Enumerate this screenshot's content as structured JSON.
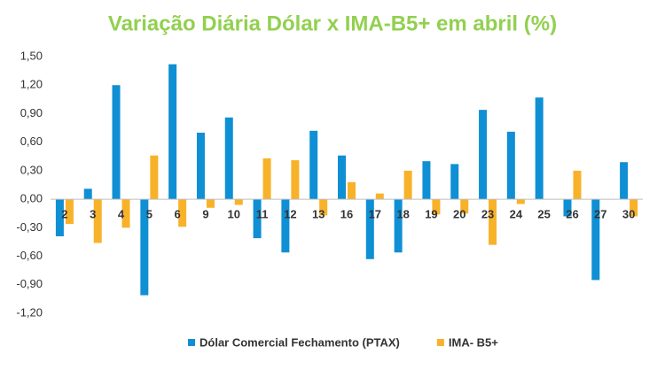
{
  "chart_data": {
    "type": "bar",
    "title": "Variação Diária Dólar x IMA-B5+ em abril (%)",
    "categories": [
      "2",
      "3",
      "4",
      "5",
      "6",
      "9",
      "10",
      "11",
      "12",
      "13",
      "16",
      "17",
      "18",
      "19",
      "20",
      "23",
      "24",
      "25",
      "26",
      "27",
      "30"
    ],
    "series": [
      {
        "name": "Dólar Comercial Fechamento (PTAX)",
        "color": "#0f8fd4",
        "values": [
          -0.39,
          0.11,
          1.2,
          -1.01,
          1.42,
          0.7,
          0.86,
          -0.41,
          -0.56,
          0.72,
          0.46,
          -0.63,
          -0.56,
          0.4,
          0.37,
          0.94,
          0.71,
          1.07,
          -0.18,
          -0.85,
          0.39
        ]
      },
      {
        "name": "IMA- B5+",
        "color": "#f8b229",
        "values": [
          -0.26,
          -0.46,
          -0.3,
          0.46,
          -0.29,
          -0.09,
          -0.06,
          0.43,
          0.41,
          -0.17,
          0.18,
          0.06,
          0.3,
          -0.16,
          -0.15,
          -0.48,
          -0.05,
          null,
          0.3,
          null,
          -0.18
        ]
      }
    ],
    "ylim": [
      -1.2,
      1.5
    ],
    "yticks": [
      {
        "value": -1.2,
        "label": "-1,20"
      },
      {
        "value": -0.9,
        "label": "-0,90"
      },
      {
        "value": -0.6,
        "label": "-0,60"
      },
      {
        "value": -0.3,
        "label": "-0,30"
      },
      {
        "value": 0,
        "label": "0,00"
      },
      {
        "value": 0.3,
        "label": "0,30"
      },
      {
        "value": 0.6,
        "label": "0,60"
      },
      {
        "value": 0.9,
        "label": "0,90"
      },
      {
        "value": 1.2,
        "label": "1,20"
      },
      {
        "value": 1.5,
        "label": "1,50"
      }
    ],
    "title_color": "#92d050",
    "legend": "bottom"
  }
}
